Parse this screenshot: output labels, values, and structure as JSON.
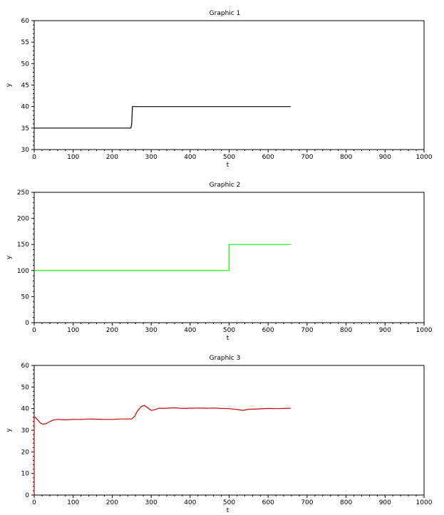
{
  "chart_data": [
    {
      "type": "line",
      "title": "Graphic 1",
      "xlabel": "t",
      "ylabel": "y",
      "xlim": [
        0,
        1000
      ],
      "ylim": [
        30,
        60
      ],
      "xticks": [
        "0",
        "100",
        "200",
        "300",
        "400",
        "500",
        "600",
        "700",
        "800",
        "900",
        "1000"
      ],
      "yticks": [
        "30",
        "35",
        "40",
        "45",
        "50",
        "55",
        "60"
      ],
      "series": [
        {
          "color": "#000000",
          "x": [
            0,
            248,
            250,
            252,
            658
          ],
          "y": [
            35,
            35,
            36,
            40,
            40
          ]
        }
      ]
    },
    {
      "type": "line",
      "title": "Graphic 2",
      "xlabel": "t",
      "ylabel": "y",
      "xlim": [
        0,
        1000
      ],
      "ylim": [
        0,
        250
      ],
      "xticks": [
        "0",
        "100",
        "200",
        "300",
        "400",
        "500",
        "600",
        "700",
        "800",
        "900",
        "1000"
      ],
      "yticks": [
        "0",
        "50",
        "100",
        "150",
        "200",
        "250"
      ],
      "series": [
        {
          "color": "#00ff00",
          "x": [
            0,
            500,
            500,
            658
          ],
          "y": [
            100,
            100,
            150,
            150
          ]
        }
      ]
    },
    {
      "type": "line",
      "title": "Graphic 3",
      "xlabel": "t",
      "ylabel": "y",
      "xlim": [
        0,
        1000
      ],
      "ylim": [
        0,
        60
      ],
      "xticks": [
        "0",
        "100",
        "200",
        "300",
        "400",
        "500",
        "600",
        "700",
        "800",
        "900",
        "1000"
      ],
      "yticks": [
        "0",
        "10",
        "20",
        "30",
        "40",
        "50",
        "60"
      ],
      "series": [
        {
          "color": "#cc0000",
          "x": [
            0,
            0,
            3,
            8,
            15,
            22,
            30,
            40,
            50,
            60,
            80,
            100,
            120,
            140,
            160,
            180,
            200,
            220,
            250,
            258,
            265,
            275,
            283,
            290,
            300,
            310,
            320,
            340,
            360,
            380,
            400,
            420,
            440,
            460,
            480,
            500,
            520,
            535,
            550,
            580,
            600,
            620,
            640,
            658
          ],
          "y": [
            0,
            36,
            36,
            35,
            33.5,
            32.8,
            33,
            34,
            34.8,
            35,
            34.8,
            35,
            35,
            35.2,
            35.1,
            35,
            35,
            35.2,
            35.2,
            36.5,
            39,
            41,
            41.5,
            40.5,
            39.2,
            39.5,
            40.2,
            40.2,
            40.4,
            40.1,
            40.2,
            40.3,
            40.2,
            40.3,
            40.1,
            40.0,
            39.6,
            39.2,
            39.7,
            39.9,
            40.1,
            40.0,
            40.1,
            40.2
          ]
        }
      ]
    }
  ]
}
